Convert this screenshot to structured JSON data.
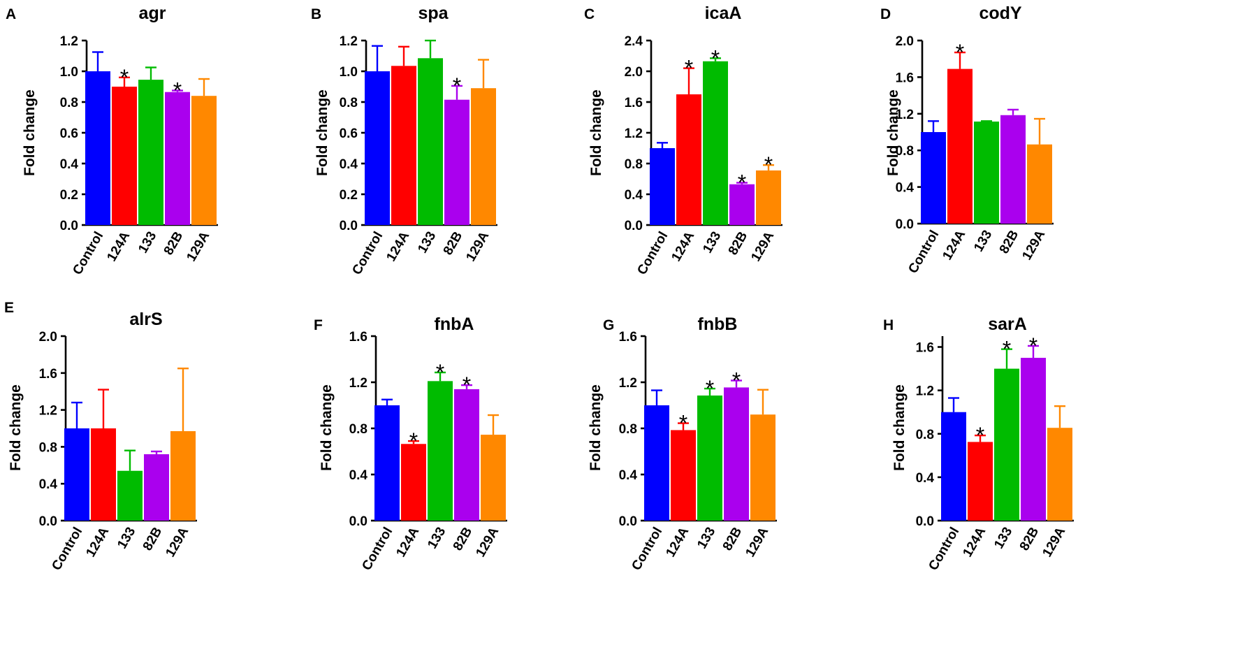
{
  "colors": {
    "Control": "#0000ff",
    "124A": "#ff0000",
    "133": "#00bb00",
    "82B": "#aa00ee",
    "129A": "#ff8800"
  },
  "chart_data": [
    {
      "type": "bar",
      "panel": "A",
      "title": "agr",
      "ylabel": "Fold change",
      "ylim": [
        0,
        1.2
      ],
      "yticks": [
        "0.0",
        "0.2",
        "0.4",
        "0.6",
        "0.8",
        "1.0",
        "1.2"
      ],
      "categories": [
        "Control",
        "124A",
        "133",
        "82B",
        "129A"
      ],
      "values": [
        1.0,
        0.9,
        0.945,
        0.865,
        0.84
      ],
      "errors": [
        0.125,
        0.06,
        0.08,
        0.01,
        0.11
      ],
      "significance": [
        "",
        "*",
        "",
        "*",
        ""
      ]
    },
    {
      "type": "bar",
      "panel": "B",
      "title": "spa",
      "ylabel": "Fold change",
      "ylim": [
        0,
        1.2
      ],
      "yticks": [
        "0.0",
        "0.2",
        "0.4",
        "0.6",
        "0.8",
        "1.0",
        "1.2"
      ],
      "categories": [
        "Control",
        "124A",
        "133",
        "82B",
        "129A"
      ],
      "values": [
        1.0,
        1.035,
        1.085,
        0.815,
        0.89
      ],
      "errors": [
        0.165,
        0.125,
        0.115,
        0.09,
        0.185
      ],
      "significance": [
        "",
        "",
        "",
        "*",
        ""
      ]
    },
    {
      "type": "bar",
      "panel": "C",
      "title": "icaA",
      "ylabel": "Fold change",
      "ylim": [
        0,
        2.4
      ],
      "yticks": [
        "0.0",
        "0.4",
        "0.8",
        "1.2",
        "1.6",
        "2.0",
        "2.4"
      ],
      "categories": [
        "Control",
        "124A",
        "133",
        "82B",
        "129A"
      ],
      "values": [
        1.0,
        1.7,
        2.13,
        0.53,
        0.71
      ],
      "errors": [
        0.07,
        0.34,
        0.04,
        0.02,
        0.07
      ],
      "significance": [
        "",
        "*",
        "*",
        "*",
        "*"
      ]
    },
    {
      "type": "bar",
      "panel": "D",
      "title": "codY",
      "ylabel": "Fold change",
      "ylim": [
        0,
        2.0
      ],
      "yticks": [
        "0.0",
        "0.4",
        "0.8",
        "1.2",
        "1.6",
        "2.0"
      ],
      "categories": [
        "Control",
        "124A",
        "133",
        "82B",
        "129A"
      ],
      "values": [
        1.0,
        1.69,
        1.115,
        1.185,
        0.865
      ],
      "errors": [
        0.12,
        0.18,
        0.005,
        0.06,
        0.28
      ],
      "significance": [
        "",
        "*",
        "",
        "",
        ""
      ]
    },
    {
      "type": "bar",
      "panel": "E",
      "title": "alrS",
      "ylabel": "Fold change",
      "ylim": [
        0,
        2.0
      ],
      "yticks": [
        "0.0",
        "0.4",
        "0.8",
        "1.2",
        "1.6",
        "2.0"
      ],
      "categories": [
        "Control",
        "124A",
        "133",
        "82B",
        "129A"
      ],
      "values": [
        1.0,
        1.0,
        0.54,
        0.72,
        0.97
      ],
      "errors": [
        0.28,
        0.42,
        0.22,
        0.03,
        0.68
      ],
      "significance": [
        "",
        "",
        "",
        "",
        ""
      ]
    },
    {
      "type": "bar",
      "panel": "F",
      "title": "fnbA",
      "ylabel": "Fold change",
      "ylim": [
        0,
        1.6
      ],
      "yticks": [
        "0.0",
        "0.4",
        "0.8",
        "1.2",
        "1.6"
      ],
      "categories": [
        "Control",
        "124A",
        "133",
        "82B",
        "129A"
      ],
      "values": [
        1.0,
        0.665,
        1.21,
        1.14,
        0.745
      ],
      "errors": [
        0.05,
        0.025,
        0.075,
        0.035,
        0.17
      ],
      "significance": [
        "",
        "*",
        "*",
        "*",
        ""
      ]
    },
    {
      "type": "bar",
      "panel": "G",
      "title": "fnbB",
      "ylabel": "Fold change",
      "ylim": [
        0,
        1.6
      ],
      "yticks": [
        "0.0",
        "0.4",
        "0.8",
        "1.2",
        "1.6"
      ],
      "categories": [
        "Control",
        "124A",
        "133",
        "82B",
        "129A"
      ],
      "values": [
        1.0,
        0.785,
        1.085,
        1.155,
        0.92
      ],
      "errors": [
        0.13,
        0.06,
        0.06,
        0.06,
        0.215
      ],
      "significance": [
        "",
        "*",
        "*",
        "*",
        ""
      ]
    },
    {
      "type": "bar",
      "panel": "H",
      "title": "sarA",
      "ylabel": "Fold change",
      "ylim": [
        0,
        1.7
      ],
      "yticks": [
        "0.0",
        "0.4",
        "0.8",
        "1.2",
        "1.6"
      ],
      "yticks_values": [
        0,
        0.4,
        0.8,
        1.2,
        1.6
      ],
      "categories": [
        "Control",
        "124A",
        "133",
        "82B",
        "129A"
      ],
      "values": [
        1.0,
        0.725,
        1.4,
        1.5,
        0.855
      ],
      "errors": [
        0.13,
        0.06,
        0.18,
        0.11,
        0.2
      ],
      "significance": [
        "",
        "*",
        "*",
        "*",
        ""
      ]
    }
  ]
}
